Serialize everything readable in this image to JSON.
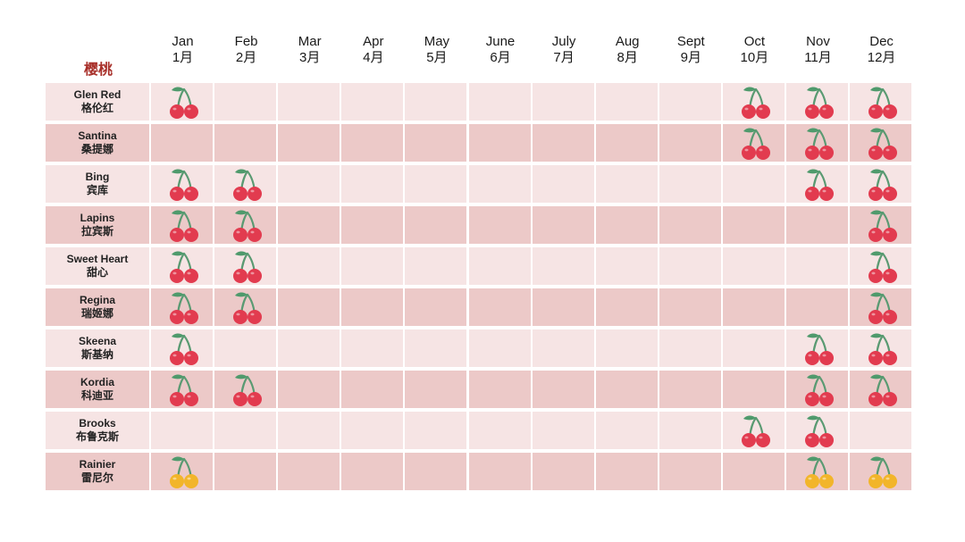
{
  "corner_title": "樱桃",
  "months": [
    {
      "en": "Jan",
      "cn": "1月"
    },
    {
      "en": "Feb",
      "cn": "2月"
    },
    {
      "en": "Mar",
      "cn": "3月"
    },
    {
      "en": "Apr",
      "cn": "4月"
    },
    {
      "en": "May",
      "cn": "5月"
    },
    {
      "en": "June",
      "cn": "6月"
    },
    {
      "en": "July",
      "cn": "7月"
    },
    {
      "en": "Aug",
      "cn": "8月"
    },
    {
      "en": "Sept",
      "cn": "9月"
    },
    {
      "en": "Oct",
      "cn": "10月"
    },
    {
      "en": "Nov",
      "cn": "11月"
    },
    {
      "en": "Dec",
      "cn": "12月"
    }
  ],
  "colors": {
    "red_cherry": "#e23b4f",
    "yellow_cherry": "#f2b52a",
    "stem": "#5a9a72",
    "leaf": "#4f9a6c"
  },
  "varieties": [
    {
      "en": "Glen Red",
      "cn": "格伦红",
      "cherry": "red",
      "months": [
        1,
        10,
        11,
        12
      ]
    },
    {
      "en": "Santina",
      "cn": "桑提娜",
      "cherry": "red",
      "months": [
        10,
        11,
        12
      ]
    },
    {
      "en": "Bing",
      "cn": "宾库",
      "cherry": "red",
      "months": [
        1,
        2,
        11,
        12
      ]
    },
    {
      "en": "Lapins",
      "cn": "拉宾斯",
      "cherry": "red",
      "months": [
        1,
        2,
        12
      ]
    },
    {
      "en": "Sweet Heart",
      "cn": "甜心",
      "cherry": "red",
      "months": [
        1,
        2,
        12
      ]
    },
    {
      "en": "Regina",
      "cn": "瑞姬娜",
      "cherry": "red",
      "months": [
        1,
        2,
        12
      ]
    },
    {
      "en": "Skeena",
      "cn": "斯基纳",
      "cherry": "red",
      "months": [
        1,
        11,
        12
      ]
    },
    {
      "en": "Kordia",
      "cn": "科迪亚",
      "cherry": "red",
      "months": [
        1,
        2,
        11,
        12
      ]
    },
    {
      "en": "Brooks",
      "cn": "布鲁克斯",
      "cherry": "red",
      "months": [
        10,
        11
      ]
    },
    {
      "en": "Rainier",
      "cn": "雷尼尔",
      "cherry": "yellow",
      "months": [
        1,
        11,
        12
      ]
    }
  ]
}
